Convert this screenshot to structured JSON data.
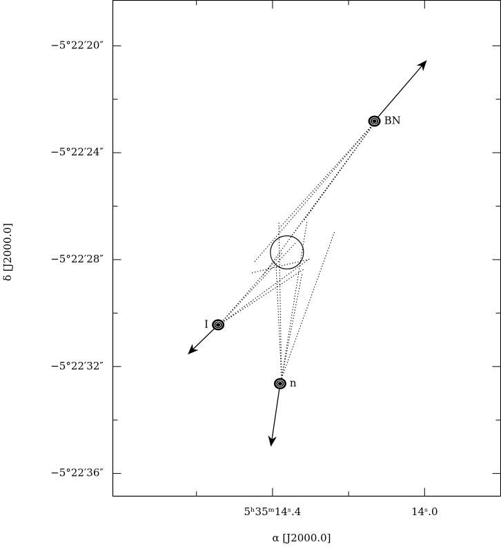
{
  "chart_data": {
    "type": "scatter",
    "x_label": "α [J2000.0]",
    "y_label": "δ [J2000.0]",
    "xlim": [
      14.82,
      13.8
    ],
    "ylim": [
      18.3,
      36.85
    ],
    "xticks": [
      {
        "value": 14.4,
        "label": "5ʰ35ᵐ14ˢ.4"
      },
      {
        "value": 14.0,
        "label": "14ˢ.0"
      }
    ],
    "xminorticks": [
      14.6,
      14.2
    ],
    "yticks": [
      {
        "value": 20,
        "label": "−5°22′20″"
      },
      {
        "value": 24,
        "label": "−5°22′24″"
      },
      {
        "value": 28,
        "label": "−5°22′28″"
      },
      {
        "value": 32,
        "label": "−5°22′32″"
      },
      {
        "value": 36,
        "label": "−5°22′36″"
      }
    ],
    "yminorticks": [
      22,
      26,
      30,
      34
    ],
    "color": "#000000",
    "points": [
      {
        "name": "BN",
        "x": 14.132,
        "y": 22.82,
        "arrow_x": 13.996,
        "arrow_y": 20.57
      },
      {
        "name": "I",
        "x": 14.543,
        "y": 30.44,
        "arrow_x": 14.621,
        "arrow_y": 31.52
      },
      {
        "name": "n",
        "x": 14.38,
        "y": 32.64,
        "arrow_x": 14.404,
        "arrow_y": 34.96
      }
    ],
    "circle": {
      "x": 14.362,
      "y": 27.73,
      "r": 0.62
    }
  }
}
